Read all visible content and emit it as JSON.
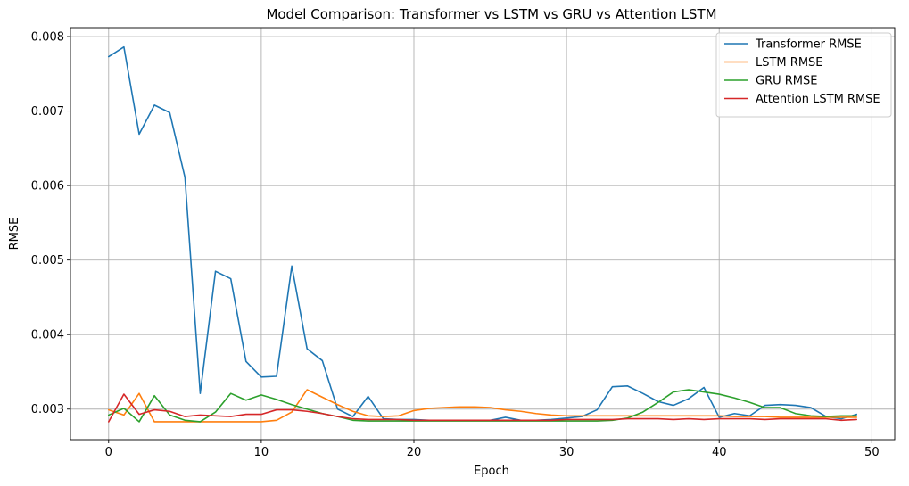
{
  "chart_data": {
    "type": "line",
    "title": "Model Comparison: Transformer vs LSTM vs GRU vs Attention LSTM",
    "xlabel": "Epoch",
    "ylabel": "RMSE",
    "xlim": [
      -2.5,
      51.5
    ],
    "ylim": [
      0.00259,
      0.00812
    ],
    "xticks": [
      0,
      10,
      20,
      30,
      40,
      50
    ],
    "yticks": [
      0.003,
      0.004,
      0.005,
      0.006,
      0.007,
      0.008
    ],
    "ytick_labels": [
      "0.003",
      "0.004",
      "0.005",
      "0.006",
      "0.007",
      "0.008"
    ],
    "grid": true,
    "legend_position": "top-right",
    "x": [
      0,
      1,
      2,
      3,
      4,
      5,
      6,
      7,
      8,
      9,
      10,
      11,
      12,
      13,
      14,
      15,
      16,
      17,
      18,
      19,
      20,
      21,
      22,
      23,
      24,
      25,
      26,
      27,
      28,
      29,
      30,
      31,
      32,
      33,
      34,
      35,
      36,
      37,
      38,
      39,
      40,
      41,
      42,
      43,
      44,
      45,
      46,
      47,
      48,
      49
    ],
    "series": [
      {
        "name": "Transformer RMSE",
        "color": "#1f77b4",
        "values": [
          0.00773,
          0.00786,
          0.00669,
          0.00708,
          0.00698,
          0.00611,
          0.00321,
          0.00485,
          0.00475,
          0.00364,
          0.00343,
          0.00344,
          0.00492,
          0.00381,
          0.00365,
          0.003,
          0.0029,
          0.00317,
          0.00287,
          0.00286,
          0.00286,
          0.00285,
          0.00285,
          0.00285,
          0.00285,
          0.00285,
          0.00289,
          0.00285,
          0.00285,
          0.00286,
          0.00288,
          0.0029,
          0.00299,
          0.0033,
          0.00331,
          0.00321,
          0.0031,
          0.00305,
          0.00314,
          0.00329,
          0.00289,
          0.00294,
          0.00291,
          0.00305,
          0.00306,
          0.00305,
          0.00302,
          0.0029,
          0.00287,
          0.00293
        ]
      },
      {
        "name": "LSTM RMSE",
        "color": "#ff7f0e",
        "values": [
          0.00299,
          0.00292,
          0.00321,
          0.00283,
          0.00283,
          0.00283,
          0.00283,
          0.00283,
          0.00283,
          0.00283,
          0.00283,
          0.00285,
          0.00296,
          0.00326,
          0.00316,
          0.00306,
          0.00297,
          0.00291,
          0.0029,
          0.00291,
          0.00298,
          0.00301,
          0.00302,
          0.00303,
          0.00303,
          0.00302,
          0.00299,
          0.00297,
          0.00294,
          0.00292,
          0.00291,
          0.00291,
          0.00291,
          0.00291,
          0.00291,
          0.00291,
          0.00291,
          0.00291,
          0.00291,
          0.00291,
          0.00291,
          0.0029,
          0.0029,
          0.0029,
          0.00289,
          0.00289,
          0.00289,
          0.00289,
          0.00289,
          0.00289
        ]
      },
      {
        "name": "GRU RMSE",
        "color": "#2ca02c",
        "values": [
          0.00292,
          0.00301,
          0.00283,
          0.00318,
          0.00292,
          0.00285,
          0.00283,
          0.00296,
          0.00321,
          0.00312,
          0.00319,
          0.00313,
          0.00306,
          0.003,
          0.00294,
          0.0029,
          0.00285,
          0.00284,
          0.00284,
          0.00284,
          0.00284,
          0.00284,
          0.00284,
          0.00284,
          0.00284,
          0.00284,
          0.00284,
          0.00284,
          0.00284,
          0.00284,
          0.00284,
          0.00284,
          0.00284,
          0.00285,
          0.00288,
          0.00296,
          0.00309,
          0.00323,
          0.00326,
          0.00323,
          0.0032,
          0.00315,
          0.00309,
          0.00302,
          0.00302,
          0.00294,
          0.00291,
          0.0029,
          0.00291,
          0.00291
        ]
      },
      {
        "name": "Attention LSTM RMSE",
        "color": "#d62728",
        "values": [
          0.00283,
          0.0032,
          0.00293,
          0.00299,
          0.00297,
          0.0029,
          0.00292,
          0.00291,
          0.0029,
          0.00293,
          0.00293,
          0.00299,
          0.00299,
          0.00297,
          0.00294,
          0.0029,
          0.00287,
          0.00286,
          0.00286,
          0.00286,
          0.00285,
          0.00285,
          0.00285,
          0.00285,
          0.00285,
          0.00285,
          0.00285,
          0.00285,
          0.00285,
          0.00285,
          0.00286,
          0.00286,
          0.00286,
          0.00286,
          0.00287,
          0.00287,
          0.00287,
          0.00286,
          0.00287,
          0.00286,
          0.00287,
          0.00287,
          0.00287,
          0.00286,
          0.00287,
          0.00287,
          0.00287,
          0.00287,
          0.00285,
          0.00286
        ]
      }
    ]
  }
}
